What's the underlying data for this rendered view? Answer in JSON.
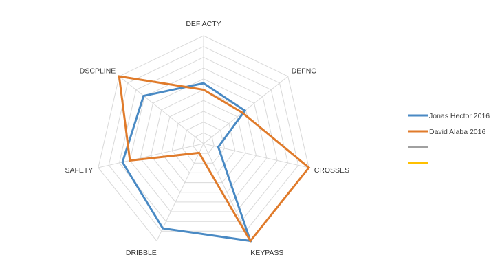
{
  "chart_data": {
    "type": "radar",
    "axes": [
      "DEF ACTY",
      "DEFNG",
      "CROSSES",
      "KEYPASS",
      "DRIBBLE",
      "SAFETY",
      "DSCPLINE"
    ],
    "rlim": [
      0,
      10
    ],
    "rings": 10,
    "grid": true,
    "legend_position": "right",
    "series": [
      {
        "name": "Jonas Hector 2016",
        "color": "#4a8ac4",
        "values": [
          5.6,
          4.9,
          1.4,
          10,
          8.7,
          7.7,
          7.1
        ]
      },
      {
        "name": "David Alaba 2016",
        "color": "#e07b2b",
        "values": [
          5.0,
          4.6,
          10,
          10,
          0.95,
          7.0,
          10
        ]
      },
      {
        "name": "",
        "color": "#a0a0a0",
        "values": []
      },
      {
        "name": "",
        "color": "#ffc000",
        "values": []
      }
    ]
  }
}
